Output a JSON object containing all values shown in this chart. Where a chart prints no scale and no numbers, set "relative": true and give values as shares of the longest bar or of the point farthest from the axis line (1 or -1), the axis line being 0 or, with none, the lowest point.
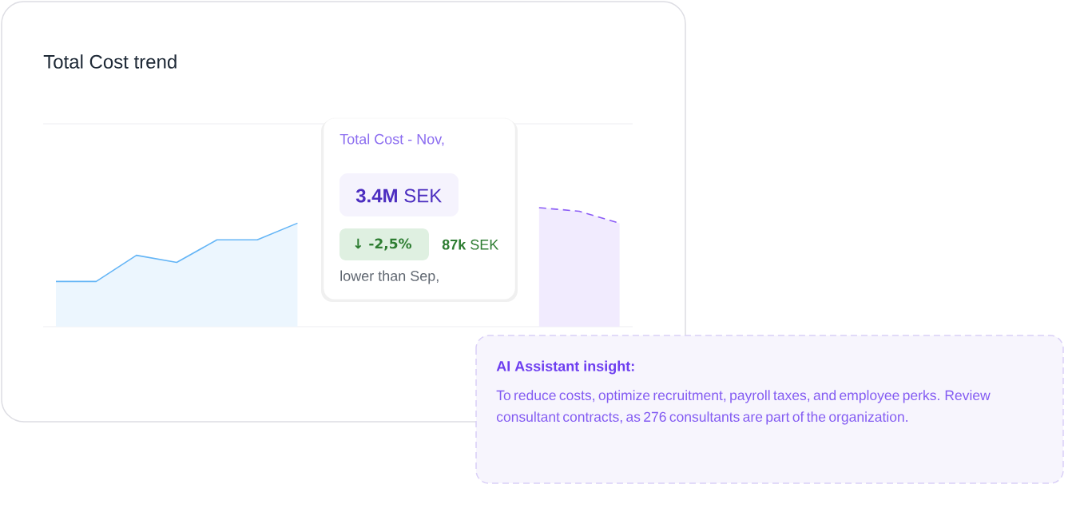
{
  "chart_data": {
    "type": "area",
    "title": "Total Cost trend",
    "relative": true,
    "categories": [
      null,
      null,
      null,
      null,
      null,
      null,
      null,
      null,
      null,
      null,
      null,
      null,
      null,
      null,
      null
    ],
    "series": [
      {
        "color": "#64b5f6",
        "values": [
          0.38,
          0.38,
          0.6,
          0.54,
          0.73,
          0.73,
          0.87,
          null,
          null,
          null,
          null,
          null,
          null,
          null,
          null
        ]
      },
      {
        "color": "#8b5cf6",
        "line_style": "dashed",
        "values": [
          null,
          null,
          null,
          null,
          null,
          null,
          null,
          null,
          null,
          null,
          null,
          null,
          1,
          0.97,
          0.87
        ]
      }
    ],
    "annotations": [
      "Total Cost - Nov,",
      "**3.4M** SEK",
      "↓ -2,5%",
      "**87k** SEK",
      "lower than Sep,",
      "AI Assistant insight:",
      "To reduce costs, optimize recruitment, payroll taxes, and employee perks. Review consultant contracts, as 276 consultants are part of the organization."
    ]
  }
}
